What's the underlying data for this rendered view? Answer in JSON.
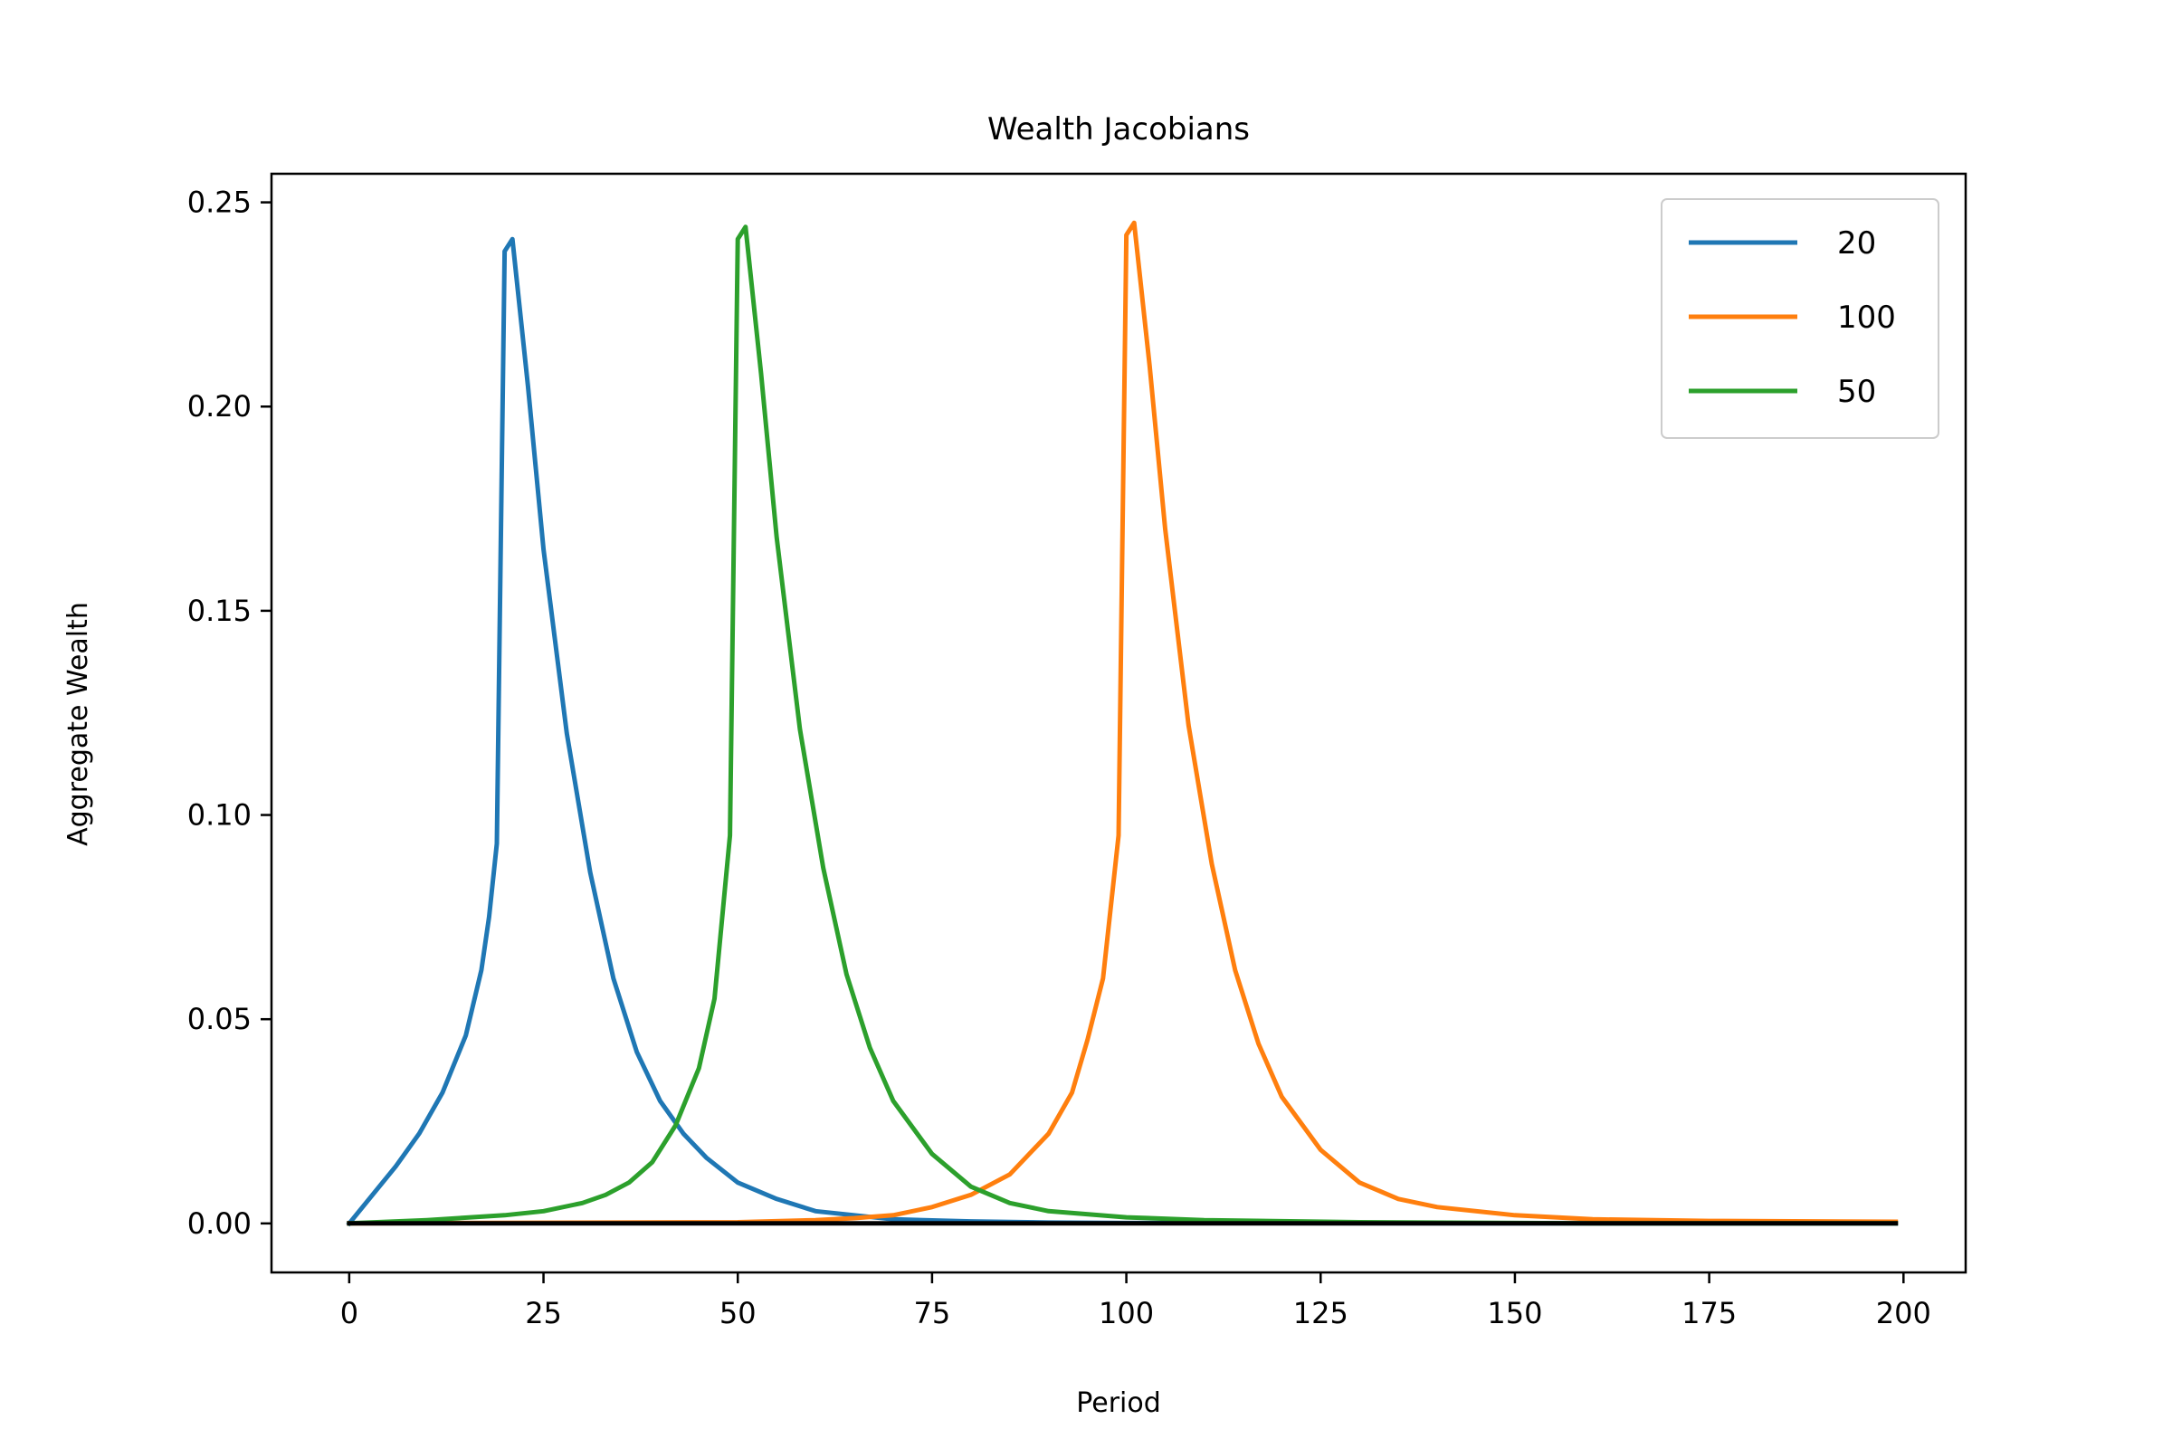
{
  "chart_data": {
    "type": "line",
    "title": "Wealth Jacobians",
    "xlabel": "Period",
    "ylabel": "Aggregate Wealth",
    "xlim": [
      -10,
      208
    ],
    "ylim": [
      -0.012,
      0.257
    ],
    "xticks": [
      0,
      25,
      50,
      75,
      100,
      125,
      150,
      175,
      200
    ],
    "xtick_labels": [
      "0",
      "25",
      "50",
      "75",
      "100",
      "125",
      "150",
      "175",
      "200"
    ],
    "yticks": [
      0.0,
      0.05,
      0.1,
      0.15,
      0.2,
      0.25
    ],
    "ytick_labels": [
      "0.00",
      "0.05",
      "0.10",
      "0.15",
      "0.20",
      "0.25"
    ],
    "grid": false,
    "legend_position": "top-right",
    "series": [
      {
        "name": "20",
        "color": "#1f77b4",
        "points": [
          [
            0,
            0.0
          ],
          [
            3,
            0.007
          ],
          [
            6,
            0.014
          ],
          [
            9,
            0.022
          ],
          [
            12,
            0.032
          ],
          [
            15,
            0.046
          ],
          [
            17,
            0.062
          ],
          [
            18,
            0.075
          ],
          [
            19,
            0.093
          ],
          [
            20,
            0.238
          ],
          [
            21,
            0.241
          ],
          [
            23,
            0.205
          ],
          [
            25,
            0.165
          ],
          [
            28,
            0.12
          ],
          [
            31,
            0.086
          ],
          [
            34,
            0.06
          ],
          [
            37,
            0.042
          ],
          [
            40,
            0.03
          ],
          [
            43,
            0.022
          ],
          [
            46,
            0.016
          ],
          [
            50,
            0.01
          ],
          [
            55,
            0.006
          ],
          [
            60,
            0.003
          ],
          [
            65,
            0.002
          ],
          [
            70,
            0.001
          ],
          [
            80,
            0.0005
          ],
          [
            90,
            0.0002
          ],
          [
            100,
            0.0001
          ],
          [
            150,
            0.0
          ],
          [
            199,
            0.0
          ]
        ]
      },
      {
        "name": "100",
        "color": "#ff7f0e",
        "points": [
          [
            0,
            0.0
          ],
          [
            50,
            0.0003
          ],
          [
            60,
            0.0008
          ],
          [
            65,
            0.0013
          ],
          [
            70,
            0.002
          ],
          [
            75,
            0.004
          ],
          [
            80,
            0.007
          ],
          [
            85,
            0.012
          ],
          [
            90,
            0.022
          ],
          [
            93,
            0.032
          ],
          [
            95,
            0.045
          ],
          [
            97,
            0.06
          ],
          [
            99,
            0.095
          ],
          [
            100,
            0.242
          ],
          [
            101,
            0.245
          ],
          [
            103,
            0.21
          ],
          [
            105,
            0.17
          ],
          [
            108,
            0.122
          ],
          [
            111,
            0.088
          ],
          [
            114,
            0.062
          ],
          [
            117,
            0.044
          ],
          [
            120,
            0.031
          ],
          [
            125,
            0.018
          ],
          [
            130,
            0.01
          ],
          [
            135,
            0.006
          ],
          [
            140,
            0.004
          ],
          [
            150,
            0.002
          ],
          [
            160,
            0.001
          ],
          [
            175,
            0.0006
          ],
          [
            199,
            0.0004
          ]
        ]
      },
      {
        "name": "50",
        "color": "#2ca02c",
        "points": [
          [
            0,
            0.0
          ],
          [
            10,
            0.0008
          ],
          [
            20,
            0.002
          ],
          [
            25,
            0.003
          ],
          [
            30,
            0.005
          ],
          [
            33,
            0.007
          ],
          [
            36,
            0.01
          ],
          [
            39,
            0.015
          ],
          [
            42,
            0.024
          ],
          [
            45,
            0.038
          ],
          [
            47,
            0.055
          ],
          [
            49,
            0.095
          ],
          [
            50,
            0.241
          ],
          [
            51,
            0.244
          ],
          [
            53,
            0.208
          ],
          [
            55,
            0.168
          ],
          [
            58,
            0.121
          ],
          [
            61,
            0.087
          ],
          [
            64,
            0.061
          ],
          [
            67,
            0.043
          ],
          [
            70,
            0.03
          ],
          [
            75,
            0.017
          ],
          [
            80,
            0.009
          ],
          [
            85,
            0.005
          ],
          [
            90,
            0.003
          ],
          [
            100,
            0.0015
          ],
          [
            110,
            0.0008
          ],
          [
            130,
            0.0003
          ],
          [
            160,
            0.0
          ],
          [
            199,
            0.0
          ]
        ]
      },
      {
        "name": "",
        "color": "#000000",
        "points": [
          [
            0,
            0.0
          ],
          [
            50,
            0.0
          ],
          [
            100,
            0.0
          ],
          [
            150,
            0.0
          ],
          [
            199,
            0.0
          ]
        ]
      }
    ]
  }
}
